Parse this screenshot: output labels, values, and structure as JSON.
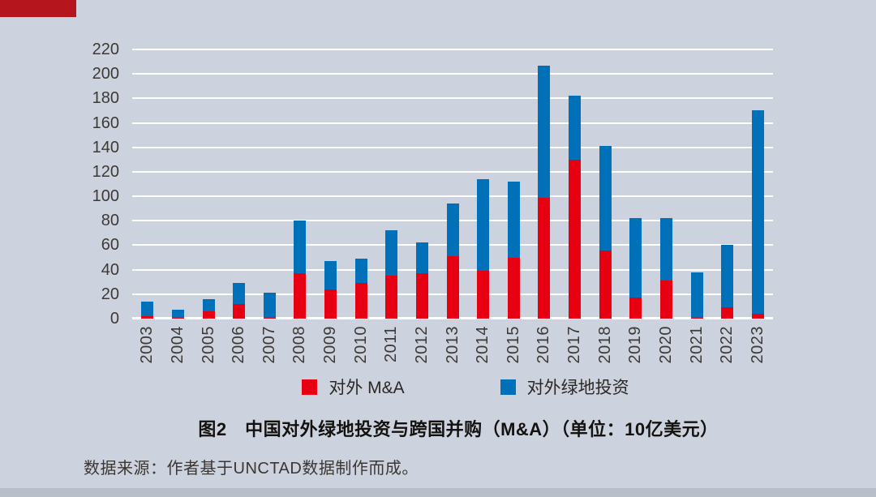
{
  "page": {
    "background_color": "#cdd3de",
    "banner_color": "#b5161d",
    "footer_strip_color": "#b9bfc9",
    "gridline_color": "#ffffff"
  },
  "chart_data": {
    "type": "bar",
    "stacked": true,
    "title": "图2　中国对外绿地投资与跨国并购（M&A）（单位：10亿美元）",
    "source_note": "数据来源：作者基于UNCTAD数据制作而成。",
    "units": "10亿美元",
    "categories": [
      "2003",
      "2004",
      "2005",
      "2006",
      "2007",
      "2008",
      "2009",
      "2010",
      "2011",
      "2012",
      "2013",
      "2014",
      "2015",
      "2016",
      "2017",
      "2018",
      "2019",
      "2020",
      "2021",
      "2022",
      "2023"
    ],
    "series": [
      {
        "name": "对外 M&A",
        "color": "#e60012",
        "stack_order": "bottom",
        "values": [
          2,
          1,
          6,
          12,
          1,
          37,
          24,
          29,
          35,
          37,
          51,
          39,
          50,
          99,
          130,
          56,
          17,
          31,
          1,
          9,
          4
        ]
      },
      {
        "name": "对外绿地投资",
        "color": "#0070b9",
        "stack_order": "top",
        "values": [
          12,
          6,
          10,
          17,
          20,
          43,
          23,
          20,
          37,
          25,
          43,
          75,
          62,
          108,
          52,
          85,
          65,
          51,
          37,
          51,
          166
        ]
      }
    ],
    "stack_totals": [
      14,
      7,
      16,
      29,
      21,
      80,
      47,
      49,
      72,
      62,
      94,
      114,
      112,
      207,
      182,
      141,
      82,
      82,
      38,
      60,
      170
    ],
    "ylim": [
      0,
      220
    ],
    "ytick_step": 20,
    "ytick_labels": [
      "0",
      "20",
      "40",
      "60",
      "80",
      "100",
      "120",
      "140",
      "160",
      "180",
      "200",
      "220"
    ],
    "grid": true,
    "legend_position": "bottom",
    "xlabel_rotation_deg": -90
  }
}
